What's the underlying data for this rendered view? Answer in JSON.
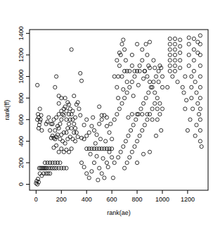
{
  "chart_data": {
    "type": "scatter",
    "x_label": "rank(ae)",
    "y_label": "rank(ff)",
    "color": "#000000",
    "marker": "circle",
    "xlim": [
      -52,
      1362
    ],
    "ylim": [
      -55,
      1435
    ],
    "xticks": [
      0,
      200,
      400,
      600,
      800,
      1000,
      1200
    ],
    "yticks": [
      0,
      200,
      400,
      600,
      800,
      1000,
      1200,
      1400
    ],
    "x": [
      0,
      5,
      10,
      15,
      20,
      25,
      35,
      45,
      55,
      65,
      75,
      85,
      100,
      115,
      130,
      145,
      160,
      180,
      200,
      220,
      240,
      60,
      80,
      95,
      110,
      70,
      90,
      110,
      130,
      150,
      170,
      190,
      30,
      45,
      10,
      20,
      15,
      25,
      30,
      20,
      35,
      40,
      10,
      45,
      30,
      120,
      130,
      140,
      150,
      160,
      170,
      180,
      190,
      200,
      210,
      220,
      230,
      240,
      250,
      260,
      270,
      280,
      290,
      300,
      310,
      320,
      330,
      140,
      160,
      180,
      200,
      220,
      240,
      260,
      280,
      300,
      110,
      130,
      150,
      170,
      190,
      210,
      230,
      250,
      270,
      290,
      310,
      200,
      220,
      240,
      260,
      280,
      160,
      150,
      180,
      200,
      280,
      330,
      340,
      350,
      360,
      350,
      120,
      100,
      90,
      80,
      180,
      230,
      260,
      300,
      240,
      160,
      180,
      140,
      200,
      220,
      250,
      270,
      290,
      310,
      320,
      360,
      380,
      400,
      420,
      440,
      460,
      480,
      500,
      520,
      540,
      560,
      580,
      400,
      420,
      440,
      460,
      480,
      500,
      520,
      540,
      560,
      580,
      600,
      380,
      400,
      420,
      440,
      460,
      480,
      500,
      520,
      540,
      560,
      580,
      600,
      380,
      400,
      360,
      450,
      500,
      520,
      560,
      590,
      470,
      510,
      550,
      430,
      490,
      530,
      570,
      610,
      600,
      620,
      620,
      640,
      650,
      660,
      670,
      680,
      690,
      700,
      710,
      720,
      640,
      660,
      680,
      700,
      720,
      740,
      760,
      780,
      800,
      820,
      840,
      860,
      880,
      900,
      920,
      940,
      960,
      980,
      1000,
      650,
      670,
      690,
      710,
      730,
      750,
      770,
      790,
      810,
      830,
      850,
      870,
      890,
      910,
      930,
      950,
      970,
      990,
      700,
      720,
      740,
      760,
      780,
      800,
      820,
      840,
      860,
      880,
      900,
      920,
      940,
      960,
      980,
      700,
      740,
      780,
      820,
      860,
      900,
      940,
      760,
      800,
      840,
      880,
      920,
      960,
      680,
      720,
      760,
      800,
      840,
      880,
      760,
      650,
      690,
      730,
      770,
      810,
      850,
      890,
      930,
      970,
      1000,
      620,
      640,
      660,
      800,
      850,
      900,
      950,
      990,
      1000,
      980,
      870,
      900,
      1060,
      1060,
      1060,
      1060,
      1060,
      1060,
      1060,
      1100,
      1100,
      1100,
      1100,
      1100,
      1100,
      1100,
      1140,
      1140,
      1140,
      1140,
      1140,
      1080,
      1120,
      1040,
      1160,
      1180,
      1170,
      1210,
      1210,
      1210,
      1210,
      1230,
      1230,
      1230,
      1240,
      1250,
      1250,
      1250,
      1250,
      1260,
      1270,
      1280,
      1290,
      1300,
      1300,
      1300,
      1300,
      1300,
      1300,
      1300,
      1300,
      1300,
      1300,
      1300,
      1310,
      1280,
      1280,
      1270,
      1260,
      1220,
      1200,
      1190,
      1180
    ],
    "values": [
      10,
      30,
      0,
      50,
      20,
      150,
      150,
      150,
      150,
      150,
      150,
      150,
      150,
      150,
      150,
      150,
      150,
      150,
      150,
      150,
      150,
      100,
      100,
      100,
      100,
      200,
      200,
      200,
      200,
      200,
      200,
      200,
      100,
      80,
      600,
      620,
      650,
      550,
      580,
      520,
      600,
      640,
      920,
      500,
      700,
      430,
      450,
      430,
      420,
      440,
      460,
      520,
      560,
      600,
      650,
      700,
      720,
      680,
      760,
      740,
      700,
      650,
      600,
      560,
      520,
      480,
      440,
      600,
      620,
      650,
      680,
      640,
      600,
      560,
      520,
      480,
      500,
      560,
      500,
      540,
      420,
      400,
      380,
      420,
      440,
      420,
      400,
      330,
      300,
      320,
      300,
      330,
      1000,
      900,
      820,
      800,
      1250,
      760,
      700,
      640,
      960,
      1030,
      560,
      620,
      580,
      560,
      750,
      800,
      650,
      820,
      480,
      360,
      300,
      340,
      460,
      480,
      520,
      600,
      680,
      620,
      740,
      200,
      160,
      100,
      60,
      120,
      200,
      260,
      150,
      100,
      60,
      200,
      300,
      330,
      330,
      330,
      330,
      330,
      330,
      330,
      330,
      330,
      330,
      330,
      420,
      450,
      480,
      540,
      500,
      460,
      560,
      600,
      640,
      540,
      480,
      420,
      550,
      600,
      430,
      620,
      720,
      640,
      620,
      560,
      380,
      420,
      400,
      280,
      40,
      240,
      160,
      60,
      250,
      200,
      600,
      900,
      1000,
      1100,
      1200,
      1300,
      1340,
      1250,
      1150,
      1050,
      650,
      700,
      750,
      800,
      850,
      900,
      950,
      1000,
      1050,
      1100,
      1150,
      1050,
      1000,
      950,
      900,
      850,
      800,
      750,
      700,
      250,
      300,
      350,
      400,
      450,
      500,
      550,
      600,
      650,
      700,
      750,
      800,
      850,
      900,
      950,
      1000,
      1050,
      1080,
      150,
      200,
      250,
      300,
      350,
      400,
      450,
      500,
      550,
      600,
      650,
      700,
      750,
      700,
      650,
      1050,
      1050,
      1050,
      1050,
      1050,
      1080,
      1080,
      650,
      650,
      650,
      650,
      600,
      600,
      1000,
      950,
      1200,
      1300,
      1250,
      1200,
      1100,
      800,
      880,
      620,
      820,
      920,
      980,
      1100,
      1150,
      950,
      900,
      1000,
      1150,
      1220,
      200,
      280,
      300,
      450,
      500,
      1000,
      1100,
      1300,
      1320,
      1050,
      1100,
      1150,
      1200,
      1250,
      1300,
      1350,
      1050,
      1100,
      1150,
      1200,
      1250,
      1300,
      1350,
      1080,
      1150,
      1220,
      1280,
      1340,
      1000,
      950,
      900,
      900,
      1000,
      850,
      1100,
      1200,
      1300,
      1360,
      1000,
      900,
      800,
      700,
      1350,
      1250,
      1150,
      1050,
      950,
      850,
      750,
      650,
      1380,
      1300,
      1200,
      1100,
      1000,
      900,
      800,
      700,
      600,
      500,
      400,
      350,
      1320,
      1220,
      550,
      450,
      600,
      500,
      780,
      700
    ]
  }
}
